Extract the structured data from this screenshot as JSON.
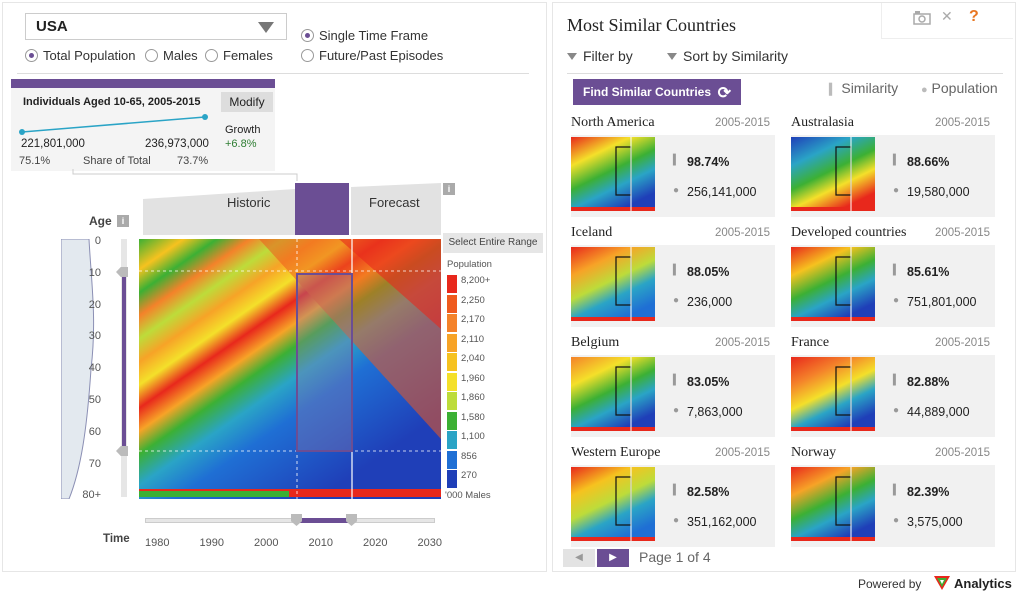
{
  "country": "USA",
  "timeframe": {
    "single": "Single Time Frame",
    "episodes": "Future/Past Episodes"
  },
  "population_type": {
    "total": "Total Population",
    "males": "Males",
    "females": "Females"
  },
  "info_card": {
    "title": "Individuals Aged 10-65, 2005-2015",
    "modify": "Modify",
    "start_value": "221,801,000",
    "end_value": "236,973,000",
    "growth_label": "Growth",
    "growth_value": "+6.8%",
    "share_start": "75.1%",
    "share_label": "Share of Total",
    "share_end": "73.7%"
  },
  "periods": {
    "historic": "Historic",
    "forecast": "Forecast",
    "select_range": "Select Entire Range"
  },
  "age_axis": {
    "title": "Age",
    "ticks": [
      "0",
      "10",
      "20",
      "30",
      "40",
      "50",
      "60",
      "70",
      "80+"
    ]
  },
  "time_axis": {
    "title": "Time",
    "ticks": [
      "1980",
      "1990",
      "2000",
      "2010",
      "2020",
      "2030"
    ]
  },
  "legend": {
    "title": "Population",
    "unit": "'000 Males",
    "labels": [
      "8,200+",
      "2,250",
      "2,170",
      "2,110",
      "2,040",
      "1,960",
      "1,860",
      "1,580",
      "1,100",
      "856",
      "270"
    ],
    "colors": [
      "#e8281c",
      "#ef5a1e",
      "#f4822a",
      "#f7a327",
      "#f6c21f",
      "#f4e02a",
      "#bddc3a",
      "#3cb034",
      "#2aa4c6",
      "#1f6fd4",
      "#1f3fb8"
    ]
  },
  "right": {
    "title": "Most Similar Countries",
    "filter_by": "Filter by",
    "sort_by": "Sort by Similarity",
    "find_btn": "Find Similar Countries",
    "col_similarity": "Similarity",
    "col_population": "Population",
    "icons": {
      "camera": "camera-icon",
      "close": "close-icon",
      "help": "help-icon"
    }
  },
  "cards": [
    {
      "name": "North America",
      "years": "2005-2015",
      "similarity": "98.74%",
      "population": "256,141,000"
    },
    {
      "name": "Australasia",
      "years": "2005-2015",
      "similarity": "88.66%",
      "population": "19,580,000"
    },
    {
      "name": "Iceland",
      "years": "2005-2015",
      "similarity": "88.05%",
      "population": "236,000"
    },
    {
      "name": "Developed countries",
      "years": "2005-2015",
      "similarity": "85.61%",
      "population": "751,801,000"
    },
    {
      "name": "Belgium",
      "years": "2005-2015",
      "similarity": "83.05%",
      "population": "7,863,000"
    },
    {
      "name": "France",
      "years": "2005-2015",
      "similarity": "82.88%",
      "population": "44,889,000"
    },
    {
      "name": "Western Europe",
      "years": "2005-2015",
      "similarity": "82.58%",
      "population": "351,162,000"
    },
    {
      "name": "Norway",
      "years": "2005-2015",
      "similarity": "82.39%",
      "population": "3,575,000"
    }
  ],
  "pager": {
    "text": "Page 1 of 4"
  },
  "footer": {
    "powered": "Powered by",
    "brand": "Analytics"
  }
}
